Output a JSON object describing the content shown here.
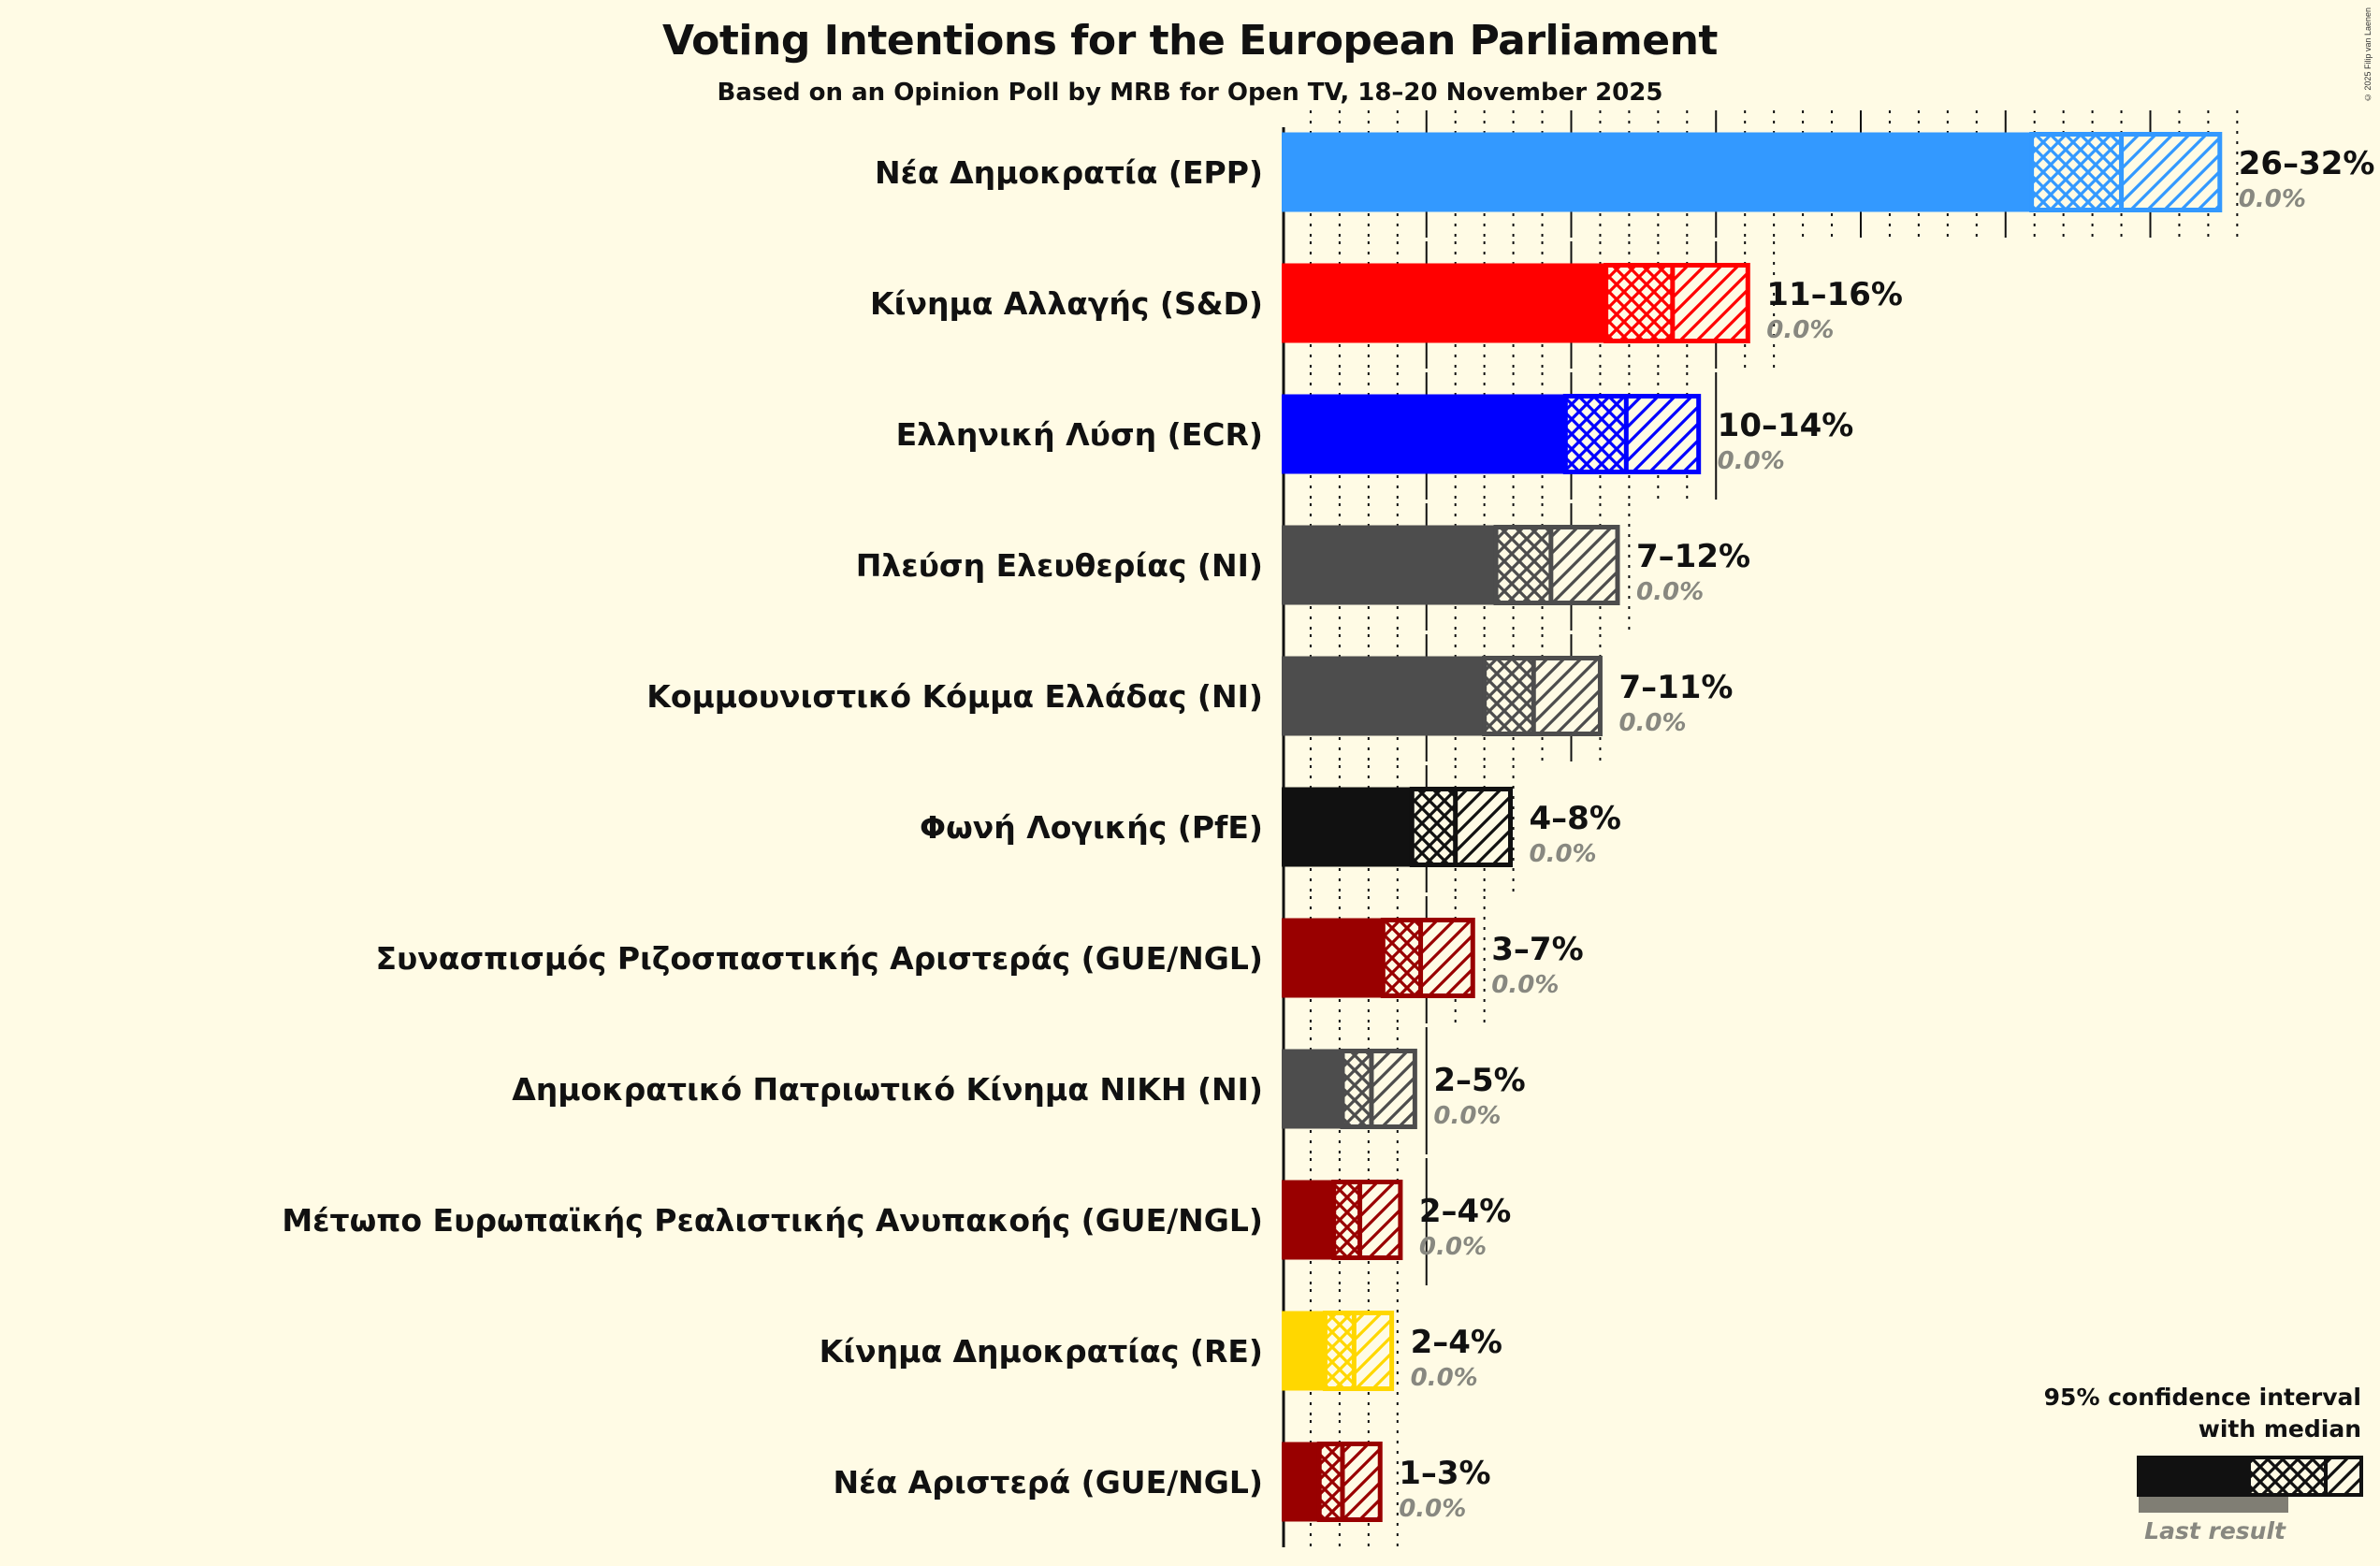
{
  "header": {
    "title": "Voting Intentions for the European Parliament",
    "subtitle": "Based on an Opinion Poll by MRB for Open TV, 18–20 November 2025",
    "copyright": "© 2025 Filip van Laenen"
  },
  "legend": {
    "line1": "95% confidence interval",
    "line2": "with median",
    "last_result": "Last result"
  },
  "colors": {
    "background": "#fffbe5",
    "text": "#111111",
    "last_result": "#888880"
  },
  "chart_data": {
    "type": "bar",
    "orientation": "horizontal",
    "title": "Voting Intentions for the European Parliament",
    "subtitle": "Based on an Opinion Poll by MRB for Open TV, 18–20 November 2025",
    "xlabel": "",
    "ylabel": "",
    "xlim": [
      0,
      33
    ],
    "grid": {
      "major_every": 5,
      "minor_every": 1
    },
    "legend_position": "bottom-right",
    "categories": [
      "Νέα Δημοκρατία (EPP)",
      "Κίνημα Αλλαγής (S&D)",
      "Ελληνική Λύση (ECR)",
      "Πλεύση Ελευθερίας (NI)",
      "Κομμουνιστικό Κόμμα Ελλάδας (NI)",
      "Φωνή Λογικής (PfE)",
      "Συνασπισμός Ριζοσπαστικής Αριστεράς (GUE/NGL)",
      "Δημοκρατικό Πατριωτικό Κίνημα ΝΙΚΗ (NI)",
      "Μέτωπο Ευρωπαϊκής Ρεαλιστικής Ανυπακοής (GUE/NGL)",
      "Κίνημα Δημοκρατίας (RE)",
      "Νέα Αριστερά (GUE/NGL)"
    ],
    "series": [
      {
        "name": "95% confidence interval with median",
        "parties": [
          {
            "label": "Νέα Δημοκρατία (EPP)",
            "color": "#3399ff",
            "ci_low": 25.9,
            "median": 29.0,
            "ci_high": 32.4,
            "range_label": "26–32%",
            "last_result": "0.0%"
          },
          {
            "label": "Κίνημα Αλλαγής (S&D)",
            "color": "#ff0000",
            "ci_low": 11.2,
            "median": 13.5,
            "ci_high": 16.1,
            "range_label": "11–16%",
            "last_result": "0.0%"
          },
          {
            "label": "Ελληνική Λύση (ECR)",
            "color": "#0000ff",
            "ci_low": 9.8,
            "median": 11.9,
            "ci_high": 14.4,
            "range_label": "10–14%",
            "last_result": "0.0%"
          },
          {
            "label": "Πλεύση Ελευθερίας (NI)",
            "color": "#4d4d4d",
            "ci_low": 7.4,
            "median": 9.3,
            "ci_high": 11.6,
            "range_label": "7–12%",
            "last_result": "0.0%"
          },
          {
            "label": "Κομμουνιστικό Κόμμα Ελλάδας (NI)",
            "color": "#4d4d4d",
            "ci_low": 7.0,
            "median": 8.7,
            "ci_high": 11.0,
            "range_label": "7–11%",
            "last_result": "0.0%"
          },
          {
            "label": "Φωνή Λογικής (PfE)",
            "color": "#111111",
            "ci_low": 4.5,
            "median": 6.0,
            "ci_high": 7.9,
            "range_label": "4–8%",
            "last_result": "0.0%"
          },
          {
            "label": "Συνασπισμός Ριζοσπαστικής Αριστεράς (GUE/NGL)",
            "color": "#990000",
            "ci_low": 3.5,
            "median": 4.8,
            "ci_high": 6.6,
            "range_label": "3–7%",
            "last_result": "0.0%"
          },
          {
            "label": "Δημοκρατικό Πατριωτικό Κίνημα ΝΙΚΗ (NI)",
            "color": "#4d4d4d",
            "ci_low": 2.1,
            "median": 3.1,
            "ci_high": 4.6,
            "range_label": "2–5%",
            "last_result": "0.0%"
          },
          {
            "label": "Μέτωπο Ευρωπαϊκής Ρεαλιστικής Ανυπακοής (GUE/NGL)",
            "color": "#990000",
            "ci_low": 1.8,
            "median": 2.7,
            "ci_high": 4.1,
            "range_label": "2–4%",
            "last_result": "0.0%"
          },
          {
            "label": "Κίνημα Δημοκρατίας (RE)",
            "color": "#ffd700",
            "ci_low": 1.5,
            "median": 2.5,
            "ci_high": 3.8,
            "range_label": "2–4%",
            "last_result": "0.0%"
          },
          {
            "label": "Νέα Αριστερά (GUE/NGL)",
            "color": "#990000",
            "ci_low": 1.3,
            "median": 2.1,
            "ci_high": 3.4,
            "range_label": "1–3%",
            "last_result": "0.0%"
          }
        ]
      }
    ]
  }
}
